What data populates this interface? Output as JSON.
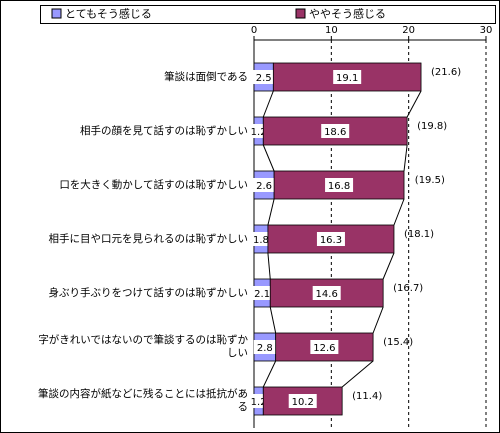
{
  "chart_data": {
    "type": "stacked-bar-horizontal",
    "categories": [
      "筆談は面倒である",
      "相手の顔を見て話すのは恥ずかしい",
      "口を大きく動かして話すのは恥ずかしい",
      "相手に目や口元を見られるのは恥ずかしい",
      "身ぶり手ぶりをつけて話すのは恥ずかしい",
      "字がきれいではないので筆談するのは恥ずかしい",
      "筆談の内容が紙などに残ることには抵抗がある"
    ],
    "series": [
      {
        "name": "とてもそう感じる",
        "color": "#9999ff",
        "values": [
          2.5,
          1.2,
          2.6,
          1.8,
          2.1,
          2.8,
          1.2
        ]
      },
      {
        "name": "ややそう感じる",
        "color": "#993366",
        "values": [
          19.1,
          18.6,
          16.8,
          16.3,
          14.6,
          12.6,
          10.2
        ]
      }
    ],
    "totals": {
      "values": [
        21.6,
        19.8,
        19.5,
        18.1,
        16.7,
        15.4,
        11.4
      ],
      "value_labels": [
        "(21.6)",
        "(19.8)",
        "(19.5)",
        "(18.1)",
        "(16.7)",
        "(15.4)",
        "(11.4)"
      ]
    },
    "xlim": [
      0,
      30
    ],
    "xticks": [
      0,
      10,
      20,
      30
    ],
    "grid": true
  }
}
